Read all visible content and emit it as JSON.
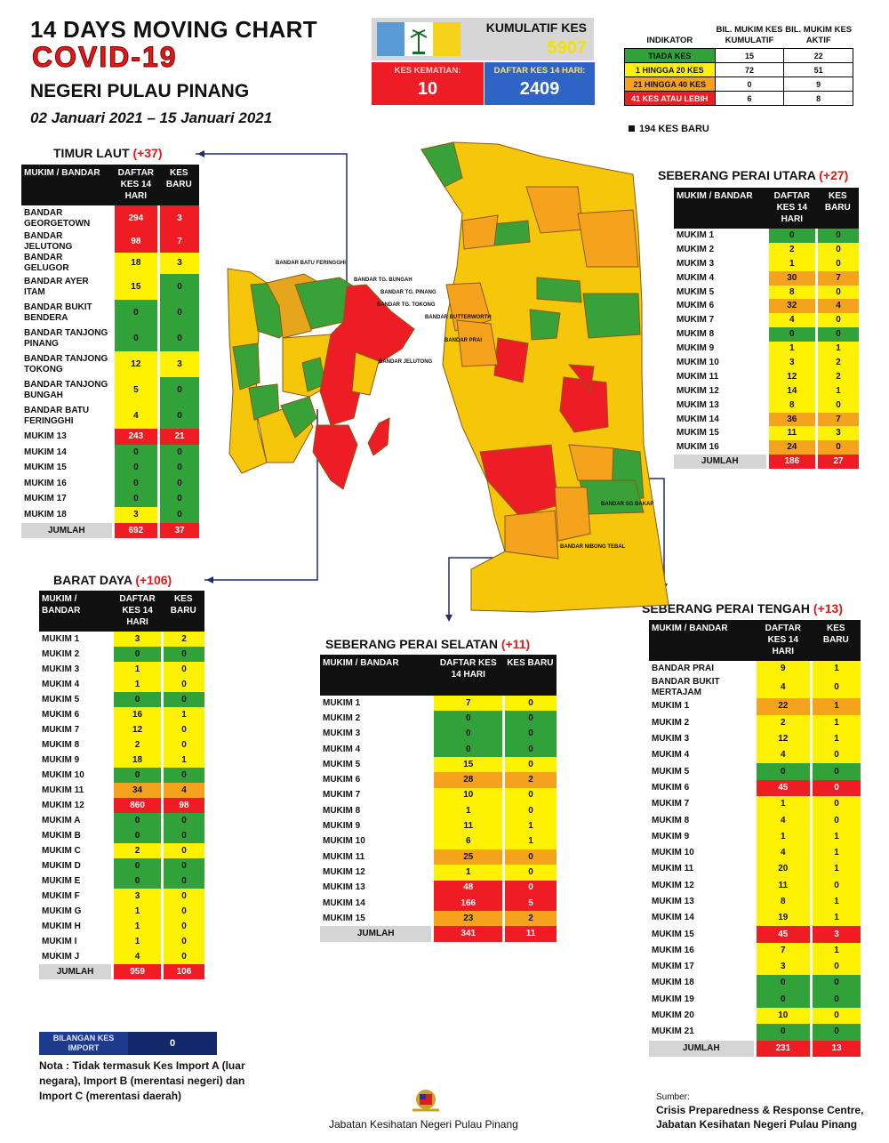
{
  "header": {
    "line1": "14 DAYS MOVING CHART",
    "line2": "COVID-19",
    "line3": "NEGERI PULAU PINANG",
    "dates": "02 Januari 2021 – 15 Januari 2021"
  },
  "summary": {
    "kum_label": "KUMULATIF KES",
    "kum_value": "5907",
    "death_label": "KES KEMATIAN:",
    "death_value": "10",
    "daftar_label": "DAFTAR KES 14 HARI:",
    "daftar_value": "2409"
  },
  "indicator": {
    "h1": "INDIKATOR",
    "h2": "BIL. MUKIM KES KUMULATIF",
    "h3": "BIL. MUKIM KES AKTIF",
    "rows": [
      {
        "label": "TIADA KES",
        "a": "15",
        "b": "22",
        "c": "G"
      },
      {
        "label": "1 HINGGA 20 KES",
        "a": "72",
        "b": "51",
        "c": "Y"
      },
      {
        "label": "21 HINGGA 40 KES",
        "a": "0",
        "b": "9",
        "c": "O"
      },
      {
        "label": "41 KES ATAU LEBIH",
        "a": "6",
        "b": "8",
        "c": "R"
      }
    ],
    "new_cases": "194 KES BARU"
  },
  "colors": {
    "green": "#31a23a",
    "yellow": "#fff200",
    "orange": "#f5a21c",
    "red": "#ef1c24"
  },
  "regions": [
    {
      "id": "tl",
      "title": "TIMUR LAUT",
      "delta": "(+37)",
      "h1": "MUKIM / BANDAR",
      "h2": "DAFTAR KES 14 HARI",
      "h3": "KES BARU",
      "rows": [
        [
          "BANDAR GEORGETOWN",
          "294",
          "3",
          "R",
          "R"
        ],
        [
          "BANDAR JELUTONG",
          "98",
          "7",
          "R",
          "R"
        ],
        [
          "BANDAR GELUGOR",
          "18",
          "3",
          "Y",
          "Y"
        ],
        [
          "BANDAR AYER ITAM",
          "15",
          "0",
          "Y",
          "G"
        ],
        [
          "BANDAR BUKIT BENDERA",
          "0",
          "0",
          "G",
          "G"
        ],
        [
          "BANDAR TANJONG PINANG",
          "0",
          "0",
          "G",
          "G"
        ],
        [
          "BANDAR TANJONG TOKONG",
          "12",
          "3",
          "Y",
          "Y"
        ],
        [
          "BANDAR TANJONG BUNGAH",
          "5",
          "0",
          "Y",
          "G"
        ],
        [
          "BANDAR BATU FERINGGHI",
          "4",
          "0",
          "Y",
          "G"
        ],
        [
          "MUKIM 13",
          "243",
          "21",
          "R",
          "R"
        ],
        [
          "MUKIM 14",
          "0",
          "0",
          "G",
          "G"
        ],
        [
          "MUKIM 15",
          "0",
          "0",
          "G",
          "G"
        ],
        [
          "MUKIM 16",
          "0",
          "0",
          "G",
          "G"
        ],
        [
          "MUKIM 17",
          "0",
          "0",
          "G",
          "G"
        ],
        [
          "MUKIM 18",
          "3",
          "0",
          "Y",
          "G"
        ]
      ],
      "total": [
        "JUMLAH",
        "692",
        "37"
      ]
    },
    {
      "id": "spu",
      "title": "SEBERANG PERAI UTARA",
      "delta": "(+27)",
      "h1": "MUKIM / BANDAR",
      "h2": "DAFTAR KES 14 HARI",
      "h3": "KES BARU",
      "rows": [
        [
          "MUKIM 1",
          "0",
          "0",
          "G",
          "G"
        ],
        [
          "MUKIM 2",
          "2",
          "0",
          "Y",
          "Y"
        ],
        [
          "MUKIM 3",
          "1",
          "0",
          "Y",
          "Y"
        ],
        [
          "MUKIM 4",
          "30",
          "7",
          "O",
          "O"
        ],
        [
          "MUKIM 5",
          "8",
          "0",
          "Y",
          "Y"
        ],
        [
          "MUKIM 6",
          "32",
          "4",
          "O",
          "O"
        ],
        [
          "MUKIM 7",
          "4",
          "0",
          "Y",
          "Y"
        ],
        [
          "MUKIM 8",
          "0",
          "0",
          "G",
          "G"
        ],
        [
          "MUKIM 9",
          "1",
          "1",
          "Y",
          "Y"
        ],
        [
          "MUKIM 10",
          "3",
          "2",
          "Y",
          "Y"
        ],
        [
          "MUKIM 11",
          "12",
          "2",
          "Y",
          "Y"
        ],
        [
          "MUKIM 12",
          "14",
          "1",
          "Y",
          "Y"
        ],
        [
          "MUKIM 13",
          "8",
          "0",
          "Y",
          "Y"
        ],
        [
          "MUKIM 14",
          "36",
          "7",
          "O",
          "O"
        ],
        [
          "MUKIM 15",
          "11",
          "3",
          "Y",
          "Y"
        ],
        [
          "MUKIM 16",
          "24",
          "0",
          "O",
          "O"
        ]
      ],
      "total": [
        "JUMLAH",
        "186",
        "27"
      ]
    },
    {
      "id": "bd",
      "title": "BARAT DAYA",
      "delta": "(+106)",
      "h1": "MUKIM / BANDAR",
      "h2": "DAFTAR KES 14 HARI",
      "h3": "KES BARU",
      "rows": [
        [
          "MUKIM 1",
          "3",
          "2",
          "Y",
          "Y"
        ],
        [
          "MUKIM 2",
          "0",
          "0",
          "G",
          "G"
        ],
        [
          "MUKIM 3",
          "1",
          "0",
          "Y",
          "Y"
        ],
        [
          "MUKIM 4",
          "1",
          "0",
          "Y",
          "Y"
        ],
        [
          "MUKIM 5",
          "0",
          "0",
          "G",
          "G"
        ],
        [
          "MUKIM 6",
          "16",
          "1",
          "Y",
          "Y"
        ],
        [
          "MUKIM 7",
          "12",
          "0",
          "Y",
          "Y"
        ],
        [
          "MUKIM 8",
          "2",
          "0",
          "Y",
          "Y"
        ],
        [
          "MUKIM 9",
          "18",
          "1",
          "Y",
          "Y"
        ],
        [
          "MUKIM 10",
          "0",
          "0",
          "G",
          "G"
        ],
        [
          "MUKIM 11",
          "34",
          "4",
          "O",
          "O"
        ],
        [
          "MUKIM 12",
          "860",
          "98",
          "R",
          "R"
        ],
        [
          "MUKIM A",
          "0",
          "0",
          "G",
          "G"
        ],
        [
          "MUKIM B",
          "0",
          "0",
          "G",
          "G"
        ],
        [
          "MUKIM C",
          "2",
          "0",
          "Y",
          "Y"
        ],
        [
          "MUKIM D",
          "0",
          "0",
          "G",
          "G"
        ],
        [
          "MUKIM E",
          "0",
          "0",
          "G",
          "G"
        ],
        [
          "MUKIM F",
          "3",
          "0",
          "Y",
          "Y"
        ],
        [
          "MUKIM G",
          "1",
          "0",
          "Y",
          "Y"
        ],
        [
          "MUKIM H",
          "1",
          "0",
          "Y",
          "Y"
        ],
        [
          "MUKIM I",
          "1",
          "0",
          "Y",
          "Y"
        ],
        [
          "MUKIM J",
          "4",
          "0",
          "Y",
          "Y"
        ]
      ],
      "total": [
        "JUMLAH",
        "959",
        "106"
      ]
    },
    {
      "id": "sps",
      "title": "SEBERANG PERAI SELATAN",
      "delta": "(+11)",
      "h1": "MUKIM / BANDAR",
      "h2": "DAFTAR KES 14 HARI",
      "h3": "KES BARU",
      "rows": [
        [
          "MUKIM 1",
          "7",
          "0",
          "Y",
          "Y"
        ],
        [
          "MUKIM 2",
          "0",
          "0",
          "G",
          "G"
        ],
        [
          "MUKIM 3",
          "0",
          "0",
          "G",
          "G"
        ],
        [
          "MUKIM 4",
          "0",
          "0",
          "G",
          "G"
        ],
        [
          "MUKIM 5",
          "15",
          "0",
          "Y",
          "Y"
        ],
        [
          "MUKIM 6",
          "28",
          "2",
          "O",
          "O"
        ],
        [
          "MUKIM 7",
          "10",
          "0",
          "Y",
          "Y"
        ],
        [
          "MUKIM 8",
          "1",
          "0",
          "Y",
          "Y"
        ],
        [
          "MUKIM 9",
          "11",
          "1",
          "Y",
          "Y"
        ],
        [
          "MUKIM 10",
          "6",
          "1",
          "Y",
          "Y"
        ],
        [
          "MUKIM 11",
          "25",
          "0",
          "O",
          "O"
        ],
        [
          "MUKIM 12",
          "1",
          "0",
          "Y",
          "Y"
        ],
        [
          "MUKIM 13",
          "48",
          "0",
          "R",
          "R"
        ],
        [
          "MUKIM 14",
          "166",
          "5",
          "R",
          "R"
        ],
        [
          "MUKIM 15",
          "23",
          "2",
          "O",
          "O"
        ]
      ],
      "total": [
        "JUMLAH",
        "341",
        "11"
      ]
    },
    {
      "id": "spt",
      "title": "SEBERANG PERAI TENGAH",
      "delta": "(+13)",
      "h1": "MUKIM / BANDAR",
      "h2": "DAFTAR KES 14 HARI",
      "h3": "KES BARU",
      "rows": [
        [
          "BANDAR PRAI",
          "9",
          "1",
          "Y",
          "Y"
        ],
        [
          "BANDAR BUKIT MERTAJAM",
          "4",
          "0",
          "Y",
          "Y"
        ],
        [
          "MUKIM 1",
          "22",
          "1",
          "O",
          "O"
        ],
        [
          "MUKIM 2",
          "2",
          "1",
          "Y",
          "Y"
        ],
        [
          "MUKIM 3",
          "12",
          "1",
          "Y",
          "Y"
        ],
        [
          "MUKIM 4",
          "4",
          "0",
          "Y",
          "Y"
        ],
        [
          "MUKIM 5",
          "0",
          "0",
          "G",
          "G"
        ],
        [
          "MUKIM 6",
          "45",
          "0",
          "R",
          "R"
        ],
        [
          "MUKIM 7",
          "1",
          "0",
          "Y",
          "Y"
        ],
        [
          "MUKIM 8",
          "4",
          "0",
          "Y",
          "Y"
        ],
        [
          "MUKIM 9",
          "1",
          "1",
          "Y",
          "Y"
        ],
        [
          "MUKIM 10",
          "4",
          "1",
          "Y",
          "Y"
        ],
        [
          "MUKIM 11",
          "20",
          "1",
          "Y",
          "Y"
        ],
        [
          "MUKIM 12",
          "11",
          "0",
          "Y",
          "Y"
        ],
        [
          "MUKIM 13",
          "8",
          "1",
          "Y",
          "Y"
        ],
        [
          "MUKIM 14",
          "19",
          "1",
          "Y",
          "Y"
        ],
        [
          "MUKIM 15",
          "45",
          "3",
          "R",
          "R"
        ],
        [
          "MUKIM 16",
          "7",
          "1",
          "Y",
          "Y"
        ],
        [
          "MUKIM 17",
          "3",
          "0",
          "Y",
          "Y"
        ],
        [
          "MUKIM 18",
          "0",
          "0",
          "G",
          "G"
        ],
        [
          "MUKIM 19",
          "0",
          "0",
          "G",
          "G"
        ],
        [
          "MUKIM 20",
          "10",
          "0",
          "Y",
          "Y"
        ],
        [
          "MUKIM 21",
          "0",
          "0",
          "G",
          "G"
        ]
      ],
      "total": [
        "JUMLAH",
        "231",
        "13"
      ]
    }
  ],
  "map_labels": {
    "island": [
      "BANDAR BATU FERINGGHI",
      "BANDAR TG. BUNGAH",
      "BANDAR TG. PINANG",
      "BANDAR TG. TOKONG",
      "BANDAR JELUTONG"
    ],
    "mainland": [
      "BANDAR BUTTERWORTH",
      "BANDAR PRAI",
      "BANDAR SG BAKAP",
      "BANDAR NIBONG TEBAL"
    ]
  },
  "import": {
    "label": "BILANGAN KES IMPORT",
    "value": "0",
    "note": "Nota : Tidak termasuk Kes Import A (luar negara), Import B (merentasi negeri) dan Import C (merentasi daerah)"
  },
  "footer": {
    "dept": "Jabatan Kesihatan Negeri Pulau Pinang",
    "source_label": "Sumber:",
    "source_1": "Crisis Preparedness & Response Centre,",
    "source_2": "Jabatan Kesihatan Negeri Pulau Pinang"
  }
}
